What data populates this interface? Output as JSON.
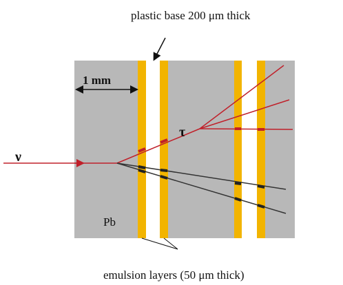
{
  "labels": {
    "plastic_base": "plastic base 200 μm thick",
    "scale": "1 mm",
    "neutrino": "ν",
    "tau": "τ",
    "material": "Pb",
    "emulsion": "emulsion layers (50  μm thick)"
  }
}
